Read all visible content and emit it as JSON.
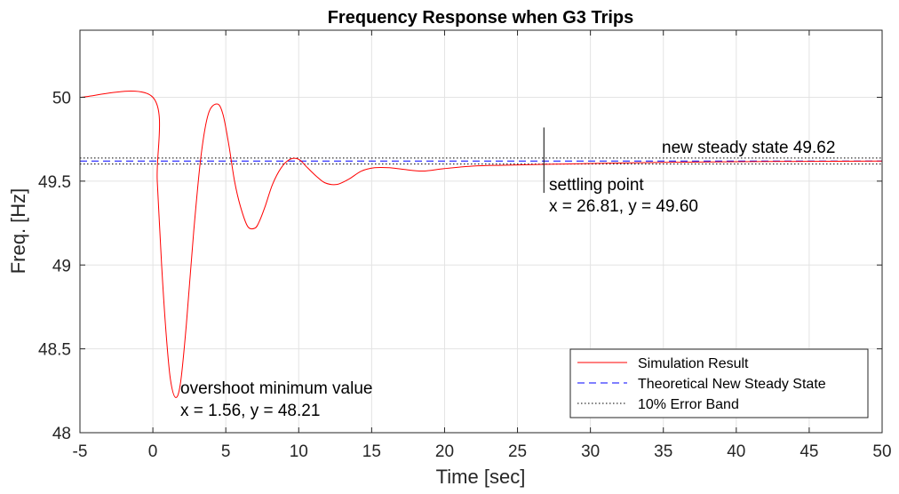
{
  "chart_data": {
    "type": "line",
    "title": "Frequency Response when G3 Trips",
    "xlabel": "Time [sec]",
    "ylabel": "Freq. [Hz]",
    "xlim": [
      -5,
      50
    ],
    "ylim": [
      48,
      50.4
    ],
    "xticks": [
      -5,
      0,
      5,
      10,
      15,
      20,
      25,
      30,
      35,
      40,
      45,
      50
    ],
    "yticks": [
      48,
      48.5,
      49,
      49.5,
      50
    ],
    "ytick_labels": [
      "48",
      "48.5",
      "49",
      "49.5",
      "50"
    ],
    "grid": true,
    "legend_position": "bottom-right",
    "series": [
      {
        "name": "Simulation Result",
        "style": "solid",
        "color": "#ff0000",
        "x": [
          -5,
          0,
          0.3,
          0.6,
          0.9,
          1.2,
          1.56,
          1.9,
          2.3,
          2.8,
          3.3,
          3.8,
          4.4,
          4.8,
          5.2,
          5.6,
          6.0,
          6.5,
          7.0,
          7.3,
          7.7,
          8.2,
          8.8,
          9.4,
          10.0,
          10.6,
          11.2,
          11.8,
          12.6,
          13.4,
          14.3,
          15.2,
          16.2,
          17.2,
          18.5,
          20.0,
          22.0,
          24.0,
          26.81,
          30.0,
          35.0,
          40.0,
          45.0,
          50.0
        ],
        "y": [
          50.0,
          50.0,
          49.5,
          49.0,
          48.6,
          48.32,
          48.21,
          48.3,
          48.65,
          49.2,
          49.65,
          49.9,
          49.96,
          49.9,
          49.72,
          49.5,
          49.35,
          49.23,
          49.22,
          49.26,
          49.35,
          49.48,
          49.58,
          49.63,
          49.63,
          49.58,
          49.53,
          49.49,
          49.48,
          49.51,
          49.56,
          49.58,
          49.58,
          49.57,
          49.56,
          49.575,
          49.59,
          49.595,
          49.6,
          49.605,
          49.612,
          49.616,
          49.618,
          49.62
        ]
      },
      {
        "name": "Theoretical New Steady State",
        "style": "dashed",
        "color": "#0000ff",
        "y_value": 49.62
      },
      {
        "name": "10% Error Band",
        "style": "dotted",
        "color": "#000000",
        "y_values": [
          49.638,
          49.602
        ]
      }
    ],
    "settling_marker": {
      "x": 26.81,
      "y_from": 49.43,
      "y_to": 49.82
    },
    "annotations": [
      {
        "id": "overshoot",
        "anchor_x": 1.56,
        "anchor_y": 48.21,
        "line1": "overshoot minimum value",
        "line2": "x = 1.56, y = 48.21"
      },
      {
        "id": "settling",
        "anchor_x": 26.81,
        "anchor_y": 49.6,
        "line1": "settling point",
        "line2": "x = 26.81, y = 49.60"
      },
      {
        "id": "steady",
        "anchor_x": 35,
        "anchor_y": 49.62,
        "line1": "new steady state 49.62"
      }
    ]
  }
}
